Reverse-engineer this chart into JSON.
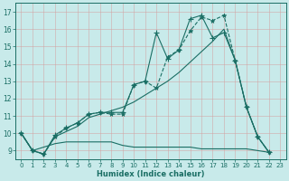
{
  "background_color": "#c8eaea",
  "grid_color": "#b0d8d8",
  "line_color": "#1a6e64",
  "xlabel": "Humidex (Indice chaleur)",
  "xlim": [
    -0.5,
    23.5
  ],
  "ylim": [
    8.5,
    17.5
  ],
  "yticks": [
    9,
    10,
    11,
    12,
    13,
    14,
    15,
    16,
    17
  ],
  "xticks": [
    0,
    1,
    2,
    3,
    4,
    5,
    6,
    7,
    8,
    9,
    10,
    11,
    12,
    13,
    14,
    15,
    16,
    17,
    18,
    19,
    20,
    21,
    22,
    23
  ],
  "lines": [
    {
      "x": [
        0,
        1,
        2,
        3,
        4,
        5,
        6,
        7,
        8,
        9,
        10,
        11,
        12,
        13,
        14,
        15,
        16,
        17,
        18,
        19,
        20,
        21,
        22
      ],
      "y": [
        10.0,
        9.0,
        8.8,
        9.8,
        10.3,
        10.6,
        11.1,
        11.2,
        11.1,
        11.1,
        12.8,
        13.0,
        12.6,
        14.4,
        14.8,
        15.9,
        16.7,
        16.5,
        16.8,
        14.2,
        11.5,
        9.8,
        8.9
      ],
      "marker": "*",
      "linestyle": "--"
    },
    {
      "x": [
        0,
        1,
        2,
        3,
        4,
        5,
        6,
        7,
        8,
        9,
        10,
        11,
        12,
        13,
        14,
        15,
        16,
        17,
        18,
        19,
        20,
        21,
        22
      ],
      "y": [
        10.0,
        9.0,
        8.8,
        9.9,
        10.3,
        10.6,
        11.1,
        11.2,
        11.2,
        11.2,
        12.8,
        13.0,
        15.8,
        14.3,
        14.8,
        16.6,
        16.8,
        15.5,
        15.8,
        14.2,
        11.5,
        9.8,
        8.9
      ],
      "marker": "+",
      "linestyle": "-"
    },
    {
      "x": [
        0,
        1,
        2,
        3,
        4,
        5,
        6,
        7,
        8,
        9,
        10,
        11,
        12,
        13,
        14,
        15,
        16,
        17,
        18,
        19,
        20,
        21,
        22
      ],
      "y": [
        10.0,
        9.0,
        8.8,
        9.8,
        10.1,
        10.4,
        10.9,
        11.1,
        11.3,
        11.5,
        11.8,
        12.2,
        12.6,
        13.0,
        13.5,
        14.1,
        14.7,
        15.3,
        16.0,
        14.2,
        11.5,
        9.8,
        8.9
      ],
      "marker": null,
      "linestyle": "-"
    },
    {
      "x": [
        0,
        1,
        2,
        3,
        4,
        5,
        6,
        7,
        8,
        9,
        10,
        11,
        12,
        13,
        14,
        15,
        16,
        17,
        18,
        19,
        20,
        21,
        22
      ],
      "y": [
        10.0,
        9.0,
        9.2,
        9.4,
        9.5,
        9.5,
        9.5,
        9.5,
        9.5,
        9.3,
        9.2,
        9.2,
        9.2,
        9.2,
        9.2,
        9.2,
        9.1,
        9.1,
        9.1,
        9.1,
        9.1,
        9.0,
        8.9
      ],
      "marker": null,
      "linestyle": "-"
    }
  ]
}
